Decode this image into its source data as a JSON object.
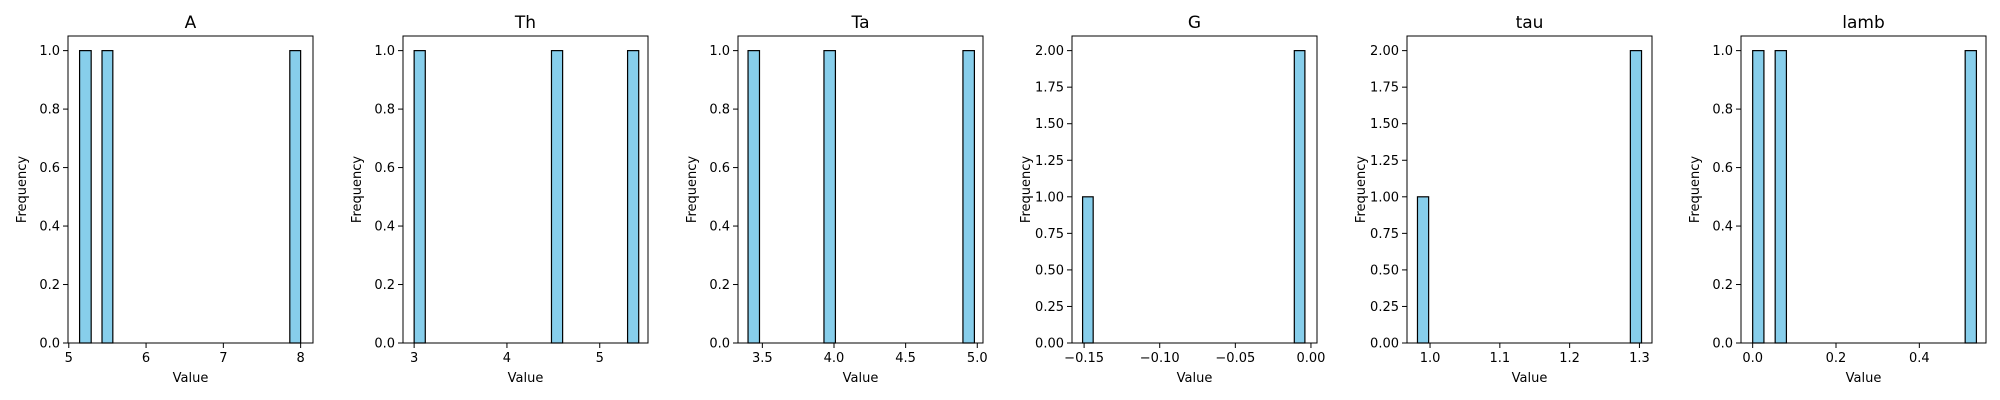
{
  "chart_data": [
    {
      "type": "bar",
      "title": "A",
      "xlabel": "Value",
      "ylabel": "Frequency",
      "xlim": [
        4.99,
        8.16
      ],
      "ylim": [
        0,
        1.05
      ],
      "xticks": [
        5,
        6,
        7,
        8
      ],
      "xtick_labels": [
        "5",
        "6",
        "7",
        "8"
      ],
      "yticks": [
        0,
        0.2,
        0.4,
        0.6,
        0.8,
        1.0
      ],
      "ytick_labels": [
        "0.0",
        "0.2",
        "0.4",
        "0.6",
        "0.8",
        "1.0"
      ],
      "bins": [
        {
          "x0": 5.14,
          "x1": 5.29,
          "count": 1
        },
        {
          "x0": 5.43,
          "x1": 5.57,
          "count": 1
        },
        {
          "x0": 7.86,
          "x1": 8.0,
          "count": 1
        }
      ],
      "grid": false
    },
    {
      "type": "bar",
      "title": "Th",
      "xlabel": "Value",
      "ylabel": "Frequency",
      "xlim": [
        2.88,
        5.52
      ],
      "ylim": [
        0,
        1.05
      ],
      "xticks": [
        3,
        4,
        5
      ],
      "xtick_labels": [
        "3",
        "4",
        "5"
      ],
      "yticks": [
        0,
        0.2,
        0.4,
        0.6,
        0.8,
        1.0
      ],
      "ytick_labels": [
        "0.0",
        "0.2",
        "0.4",
        "0.6",
        "0.8",
        "1.0"
      ],
      "bins": [
        {
          "x0": 3.0,
          "x1": 3.12,
          "count": 1
        },
        {
          "x0": 4.48,
          "x1": 4.6,
          "count": 1
        },
        {
          "x0": 5.3,
          "x1": 5.42,
          "count": 1
        }
      ],
      "grid": false
    },
    {
      "type": "bar",
      "title": "Ta",
      "xlabel": "Value",
      "ylabel": "Frequency",
      "xlim": [
        3.33,
        5.04
      ],
      "ylim": [
        0,
        1.05
      ],
      "xticks": [
        3.5,
        4.0,
        4.5,
        5.0
      ],
      "xtick_labels": [
        "3.5",
        "4.0",
        "4.5",
        "5.0"
      ],
      "yticks": [
        0,
        0.2,
        0.4,
        0.6,
        0.8,
        1.0
      ],
      "ytick_labels": [
        "0.0",
        "0.2",
        "0.4",
        "0.6",
        "0.8",
        "1.0"
      ],
      "bins": [
        {
          "x0": 3.4,
          "x1": 3.48,
          "count": 1
        },
        {
          "x0": 3.93,
          "x1": 4.01,
          "count": 1
        },
        {
          "x0": 4.9,
          "x1": 4.98,
          "count": 1
        }
      ],
      "grid": false
    },
    {
      "type": "bar",
      "title": "G",
      "xlabel": "Value",
      "ylabel": "Frequency",
      "xlim": [
        -0.158,
        0.004
      ],
      "ylim": [
        0,
        2.1
      ],
      "xticks": [
        -0.15,
        -0.1,
        -0.05,
        0.0
      ],
      "xtick_labels": [
        "−0.15",
        "−0.10",
        "−0.05",
        "0.00"
      ],
      "yticks": [
        0,
        0.25,
        0.5,
        0.75,
        1.0,
        1.25,
        1.5,
        1.75,
        2.0
      ],
      "ytick_labels": [
        "0.00",
        "0.25",
        "0.50",
        "0.75",
        "1.00",
        "1.25",
        "1.50",
        "1.75",
        "2.00"
      ],
      "bins": [
        {
          "x0": -0.151,
          "x1": -0.144,
          "count": 1
        },
        {
          "x0": -0.011,
          "x1": -0.004,
          "count": 2
        }
      ],
      "grid": false
    },
    {
      "type": "bar",
      "title": "tau",
      "xlabel": "Value",
      "ylabel": "Frequency",
      "xlim": [
        0.967,
        1.318
      ],
      "ylim": [
        0,
        2.1
      ],
      "xticks": [
        1.0,
        1.1,
        1.2,
        1.3
      ],
      "xtick_labels": [
        "1.0",
        "1.1",
        "1.2",
        "1.3"
      ],
      "yticks": [
        0,
        0.25,
        0.5,
        0.75,
        1.0,
        1.25,
        1.5,
        1.75,
        2.0
      ],
      "ytick_labels": [
        "0.00",
        "0.25",
        "0.50",
        "0.75",
        "1.00",
        "1.25",
        "1.50",
        "1.75",
        "2.00"
      ],
      "bins": [
        {
          "x0": 0.982,
          "x1": 0.998,
          "count": 1
        },
        {
          "x0": 1.287,
          "x1": 1.303,
          "count": 2
        }
      ],
      "grid": false
    },
    {
      "type": "bar",
      "title": "lamb",
      "xlabel": "Value",
      "ylabel": "Frequency",
      "xlim": [
        -0.028,
        0.56
      ],
      "ylim": [
        0,
        1.05
      ],
      "xticks": [
        0.0,
        0.2,
        0.4
      ],
      "xtick_labels": [
        "0.0",
        "0.2",
        "0.4"
      ],
      "yticks": [
        0,
        0.2,
        0.4,
        0.6,
        0.8,
        1.0
      ],
      "ytick_labels": [
        "0.0",
        "0.2",
        "0.4",
        "0.6",
        "0.8",
        "1.0"
      ],
      "bins": [
        {
          "x0": 0.0,
          "x1": 0.027,
          "count": 1
        },
        {
          "x0": 0.054,
          "x1": 0.081,
          "count": 1
        },
        {
          "x0": 0.51,
          "x1": 0.537,
          "count": 1
        }
      ],
      "grid": false
    }
  ],
  "style": {
    "bar_fill": "#87ceeb",
    "bar_edge": "#000000",
    "axes_edge": "#000000",
    "background": "#ffffff"
  }
}
